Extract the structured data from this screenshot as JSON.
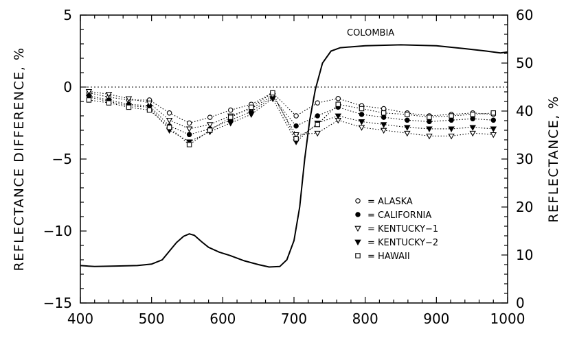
{
  "chart_data": {
    "type": "line",
    "xlabel": "",
    "ylabel_left": "REFLECTANCE DIFFERENCE, %",
    "ylabel_right": "REFLECTANCE, %",
    "xlim": [
      400,
      1000
    ],
    "ylim_left": [
      -15,
      5
    ],
    "ylim_right": [
      0,
      60
    ],
    "x_ticks": [
      400,
      500,
      600,
      700,
      800,
      900,
      1000
    ],
    "y_left_ticks": [
      5,
      0,
      -5,
      -10,
      -15
    ],
    "y_right_ticks": [
      60,
      50,
      40,
      30,
      20,
      10,
      0
    ],
    "zero_reference_line": true,
    "grid": false,
    "legend_position": "bottom-right",
    "annotation": "COLOMBIA",
    "reference_series": {
      "name": "COLOMBIA",
      "axis": "right",
      "style": "solid",
      "points": [
        [
          400,
          7.8
        ],
        [
          420,
          7.6
        ],
        [
          450,
          7.7
        ],
        [
          480,
          7.8
        ],
        [
          500,
          8.1
        ],
        [
          515,
          9.0
        ],
        [
          525,
          10.8
        ],
        [
          535,
          12.6
        ],
        [
          545,
          13.9
        ],
        [
          553,
          14.4
        ],
        [
          560,
          14.1
        ],
        [
          570,
          12.8
        ],
        [
          580,
          11.6
        ],
        [
          595,
          10.6
        ],
        [
          610,
          9.9
        ],
        [
          630,
          8.8
        ],
        [
          650,
          8.0
        ],
        [
          665,
          7.5
        ],
        [
          680,
          7.6
        ],
        [
          690,
          9.0
        ],
        [
          700,
          13.0
        ],
        [
          708,
          20.0
        ],
        [
          715,
          30.0
        ],
        [
          722,
          38.0
        ],
        [
          730,
          44.5
        ],
        [
          740,
          50.0
        ],
        [
          752,
          52.5
        ],
        [
          765,
          53.2
        ],
        [
          800,
          53.6
        ],
        [
          850,
          53.8
        ],
        [
          900,
          53.6
        ],
        [
          940,
          53.0
        ],
        [
          970,
          52.5
        ],
        [
          990,
          52.1
        ],
        [
          1000,
          52.3
        ]
      ]
    },
    "series": [
      {
        "name": "ALASKA",
        "marker": "open-circle",
        "points": [
          [
            412,
            -0.4
          ],
          [
            440,
            -0.7
          ],
          [
            468,
            -0.9
          ],
          [
            497,
            -0.9
          ],
          [
            525,
            -1.8
          ],
          [
            553,
            -2.5
          ],
          [
            582,
            -2.1
          ],
          [
            611,
            -1.6
          ],
          [
            640,
            -1.2
          ],
          [
            670,
            -0.4
          ],
          [
            703,
            -2.0
          ],
          [
            733,
            -1.1
          ],
          [
            762,
            -0.8
          ],
          [
            795,
            -1.3
          ],
          [
            826,
            -1.5
          ],
          [
            859,
            -1.8
          ],
          [
            890,
            -2.0
          ],
          [
            921,
            -1.9
          ],
          [
            951,
            -1.8
          ],
          [
            980,
            -1.9
          ]
        ]
      },
      {
        "name": "CALIFORNIA",
        "marker": "filled-circle",
        "points": [
          [
            412,
            -0.6
          ],
          [
            440,
            -0.9
          ],
          [
            468,
            -1.2
          ],
          [
            497,
            -1.3
          ],
          [
            525,
            -2.7
          ],
          [
            553,
            -3.3
          ],
          [
            582,
            -2.9
          ],
          [
            611,
            -2.3
          ],
          [
            640,
            -1.7
          ],
          [
            670,
            -0.7
          ],
          [
            703,
            -2.7
          ],
          [
            733,
            -2.0
          ],
          [
            762,
            -1.4
          ],
          [
            795,
            -1.9
          ],
          [
            826,
            -2.1
          ],
          [
            859,
            -2.3
          ],
          [
            890,
            -2.4
          ],
          [
            921,
            -2.3
          ],
          [
            951,
            -2.2
          ],
          [
            980,
            -2.3
          ]
        ]
      },
      {
        "name": "KENTUCKY-1",
        "marker": "open-triangle-down",
        "points": [
          [
            412,
            -0.3
          ],
          [
            440,
            -0.5
          ],
          [
            468,
            -0.8
          ],
          [
            497,
            -1.1
          ],
          [
            525,
            -2.3
          ],
          [
            553,
            -2.9
          ],
          [
            582,
            -2.6
          ],
          [
            611,
            -2.0
          ],
          [
            640,
            -1.5
          ],
          [
            670,
            -0.6
          ],
          [
            703,
            -3.3
          ],
          [
            733,
            -3.2
          ],
          [
            762,
            -2.3
          ],
          [
            795,
            -2.8
          ],
          [
            826,
            -3.0
          ],
          [
            859,
            -3.2
          ],
          [
            890,
            -3.4
          ],
          [
            921,
            -3.4
          ],
          [
            951,
            -3.2
          ],
          [
            980,
            -3.3
          ]
        ]
      },
      {
        "name": "KENTUCKY-2",
        "marker": "filled-triangle-down",
        "points": [
          [
            412,
            -0.7
          ],
          [
            440,
            -1.0
          ],
          [
            468,
            -1.3
          ],
          [
            497,
            -1.4
          ],
          [
            525,
            -3.0
          ],
          [
            553,
            -3.8
          ],
          [
            582,
            -3.1
          ],
          [
            611,
            -2.5
          ],
          [
            640,
            -1.9
          ],
          [
            670,
            -0.8
          ],
          [
            703,
            -3.8
          ],
          [
            733,
            -2.5
          ],
          [
            762,
            -2.0
          ],
          [
            795,
            -2.4
          ],
          [
            826,
            -2.6
          ],
          [
            859,
            -2.8
          ],
          [
            890,
            -2.9
          ],
          [
            921,
            -2.9
          ],
          [
            951,
            -2.8
          ],
          [
            980,
            -2.9
          ]
        ]
      },
      {
        "name": "HAWAII",
        "marker": "open-square",
        "points": [
          [
            412,
            -0.9
          ],
          [
            440,
            -1.1
          ],
          [
            468,
            -1.4
          ],
          [
            497,
            -1.6
          ],
          [
            525,
            -2.8
          ],
          [
            553,
            -4.0
          ],
          [
            582,
            -3.0
          ],
          [
            611,
            -2.1
          ],
          [
            640,
            -1.4
          ],
          [
            670,
            -0.4
          ],
          [
            703,
            -3.6
          ],
          [
            733,
            -2.6
          ],
          [
            762,
            -1.2
          ],
          [
            795,
            -1.5
          ],
          [
            826,
            -1.8
          ],
          [
            859,
            -1.9
          ],
          [
            890,
            -2.1
          ],
          [
            921,
            -2.0
          ],
          [
            951,
            -1.9
          ],
          [
            980,
            -1.8
          ]
        ]
      }
    ],
    "legend": [
      {
        "marker": "open-circle",
        "label": "= ALASKA"
      },
      {
        "marker": "filled-circle",
        "label": "= CALIFORNIA"
      },
      {
        "marker": "open-triangle-down",
        "label": "= KENTUCKY−1"
      },
      {
        "marker": "filled-triangle-down",
        "label": "= KENTUCKY−2"
      },
      {
        "marker": "open-square",
        "label": "= HAWAII"
      }
    ]
  }
}
